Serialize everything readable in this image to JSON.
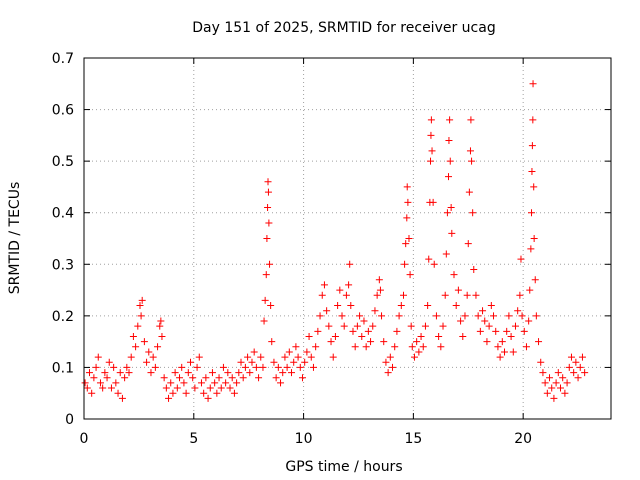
{
  "chart_data": {
    "type": "scatter",
    "title": "Day 151 of 2025, SRMTID for receiver ucag",
    "xlabel": "GPS time / hours",
    "ylabel": "SRMTID / TECUs",
    "xlim": [
      0,
      24
    ],
    "ylim": [
      0,
      0.7
    ],
    "xticks": [
      0,
      5,
      10,
      15,
      20
    ],
    "yticks": [
      0,
      0.1,
      0.2,
      0.3,
      0.4,
      0.5,
      0.6,
      0.7
    ],
    "xtick_labels": [
      "0",
      "5",
      "10",
      "15",
      "20"
    ],
    "ytick_labels": [
      "0",
      "0.1",
      "0.2",
      "0.3",
      "0.4",
      "0.5",
      "0.6",
      "0.7"
    ],
    "grid": true,
    "marker": "+",
    "marker_color": "#ff0000",
    "series": [
      {
        "name": "SRMTID",
        "points": [
          [
            0.05,
            0.07
          ],
          [
            0.15,
            0.06
          ],
          [
            0.25,
            0.09
          ],
          [
            0.35,
            0.05
          ],
          [
            0.45,
            0.08
          ],
          [
            0.55,
            0.1
          ],
          [
            0.65,
            0.12
          ],
          [
            0.75,
            0.07
          ],
          [
            0.85,
            0.06
          ],
          [
            0.95,
            0.09
          ],
          [
            1.05,
            0.08
          ],
          [
            1.15,
            0.11
          ],
          [
            1.25,
            0.06
          ],
          [
            1.35,
            0.1
          ],
          [
            1.45,
            0.07
          ],
          [
            1.55,
            0.05
          ],
          [
            1.65,
            0.09
          ],
          [
            1.75,
            0.04
          ],
          [
            1.85,
            0.08
          ],
          [
            1.95,
            0.1
          ],
          [
            2.05,
            0.09
          ],
          [
            2.15,
            0.12
          ],
          [
            2.25,
            0.16
          ],
          [
            2.35,
            0.14
          ],
          [
            2.45,
            0.18
          ],
          [
            2.55,
            0.22
          ],
          [
            2.6,
            0.2
          ],
          [
            2.65,
            0.23
          ],
          [
            2.75,
            0.15
          ],
          [
            2.85,
            0.11
          ],
          [
            2.95,
            0.13
          ],
          [
            3.05,
            0.09
          ],
          [
            3.15,
            0.12
          ],
          [
            3.25,
            0.1
          ],
          [
            3.35,
            0.14
          ],
          [
            3.45,
            0.18
          ],
          [
            3.5,
            0.19
          ],
          [
            3.55,
            0.16
          ],
          [
            3.65,
            0.08
          ],
          [
            3.75,
            0.06
          ],
          [
            3.85,
            0.04
          ],
          [
            3.95,
            0.07
          ],
          [
            4.05,
            0.05
          ],
          [
            4.15,
            0.09
          ],
          [
            4.25,
            0.06
          ],
          [
            4.35,
            0.08
          ],
          [
            4.45,
            0.1
          ],
          [
            4.55,
            0.07
          ],
          [
            4.65,
            0.05
          ],
          [
            4.75,
            0.09
          ],
          [
            4.85,
            0.11
          ],
          [
            4.95,
            0.08
          ],
          [
            5.05,
            0.06
          ],
          [
            5.15,
            0.1
          ],
          [
            5.25,
            0.12
          ],
          [
            5.35,
            0.07
          ],
          [
            5.45,
            0.05
          ],
          [
            5.55,
            0.08
          ],
          [
            5.65,
            0.04
          ],
          [
            5.75,
            0.06
          ],
          [
            5.85,
            0.09
          ],
          [
            5.95,
            0.07
          ],
          [
            6.05,
            0.05
          ],
          [
            6.15,
            0.08
          ],
          [
            6.25,
            0.06
          ],
          [
            6.35,
            0.1
          ],
          [
            6.45,
            0.07
          ],
          [
            6.55,
            0.09
          ],
          [
            6.65,
            0.06
          ],
          [
            6.75,
            0.08
          ],
          [
            6.85,
            0.05
          ],
          [
            6.95,
            0.07
          ],
          [
            7.05,
            0.09
          ],
          [
            7.15,
            0.11
          ],
          [
            7.25,
            0.08
          ],
          [
            7.35,
            0.1
          ],
          [
            7.45,
            0.12
          ],
          [
            7.55,
            0.09
          ],
          [
            7.65,
            0.11
          ],
          [
            7.75,
            0.13
          ],
          [
            7.85,
            0.1
          ],
          [
            7.95,
            0.08
          ],
          [
            8.05,
            0.12
          ],
          [
            8.15,
            0.1
          ],
          [
            8.2,
            0.19
          ],
          [
            8.25,
            0.23
          ],
          [
            8.3,
            0.28
          ],
          [
            8.33,
            0.35
          ],
          [
            8.36,
            0.41
          ],
          [
            8.38,
            0.46
          ],
          [
            8.4,
            0.44
          ],
          [
            8.42,
            0.38
          ],
          [
            8.45,
            0.3
          ],
          [
            8.5,
            0.22
          ],
          [
            8.55,
            0.15
          ],
          [
            8.65,
            0.11
          ],
          [
            8.75,
            0.08
          ],
          [
            8.85,
            0.1
          ],
          [
            8.95,
            0.07
          ],
          [
            9.05,
            0.09
          ],
          [
            9.15,
            0.12
          ],
          [
            9.25,
            0.1
          ],
          [
            9.35,
            0.13
          ],
          [
            9.45,
            0.09
          ],
          [
            9.55,
            0.11
          ],
          [
            9.65,
            0.14
          ],
          [
            9.75,
            0.12
          ],
          [
            9.85,
            0.1
          ],
          [
            9.95,
            0.08
          ],
          [
            10.05,
            0.11
          ],
          [
            10.15,
            0.13
          ],
          [
            10.25,
            0.16
          ],
          [
            10.35,
            0.12
          ],
          [
            10.45,
            0.1
          ],
          [
            10.55,
            0.14
          ],
          [
            10.65,
            0.17
          ],
          [
            10.75,
            0.2
          ],
          [
            10.85,
            0.24
          ],
          [
            10.95,
            0.26
          ],
          [
            11.05,
            0.21
          ],
          [
            11.15,
            0.18
          ],
          [
            11.25,
            0.15
          ],
          [
            11.35,
            0.12
          ],
          [
            11.45,
            0.16
          ],
          [
            11.55,
            0.22
          ],
          [
            11.65,
            0.25
          ],
          [
            11.75,
            0.2
          ],
          [
            11.85,
            0.18
          ],
          [
            11.95,
            0.24
          ],
          [
            12.05,
            0.26
          ],
          [
            12.1,
            0.3
          ],
          [
            12.15,
            0.22
          ],
          [
            12.25,
            0.17
          ],
          [
            12.35,
            0.14
          ],
          [
            12.45,
            0.18
          ],
          [
            12.55,
            0.2
          ],
          [
            12.65,
            0.16
          ],
          [
            12.75,
            0.19
          ],
          [
            12.85,
            0.14
          ],
          [
            12.95,
            0.17
          ],
          [
            13.05,
            0.15
          ],
          [
            13.15,
            0.18
          ],
          [
            13.25,
            0.21
          ],
          [
            13.35,
            0.24
          ],
          [
            13.45,
            0.27
          ],
          [
            13.5,
            0.25
          ],
          [
            13.55,
            0.2
          ],
          [
            13.65,
            0.15
          ],
          [
            13.75,
            0.11
          ],
          [
            13.85,
            0.09
          ],
          [
            13.95,
            0.12
          ],
          [
            14.05,
            0.1
          ],
          [
            14.15,
            0.14
          ],
          [
            14.25,
            0.17
          ],
          [
            14.35,
            0.2
          ],
          [
            14.45,
            0.22
          ],
          [
            14.55,
            0.24
          ],
          [
            14.6,
            0.3
          ],
          [
            14.65,
            0.34
          ],
          [
            14.7,
            0.39
          ],
          [
            14.72,
            0.45
          ],
          [
            14.75,
            0.42
          ],
          [
            14.8,
            0.35
          ],
          [
            14.85,
            0.28
          ],
          [
            14.9,
            0.18
          ],
          [
            14.95,
            0.14
          ],
          [
            15.05,
            0.12
          ],
          [
            15.15,
            0.15
          ],
          [
            15.25,
            0.13
          ],
          [
            15.35,
            0.16
          ],
          [
            15.45,
            0.14
          ],
          [
            15.55,
            0.18
          ],
          [
            15.65,
            0.22
          ],
          [
            15.7,
            0.31
          ],
          [
            15.75,
            0.42
          ],
          [
            15.78,
            0.5
          ],
          [
            15.8,
            0.55
          ],
          [
            15.82,
            0.58
          ],
          [
            15.85,
            0.52
          ],
          [
            15.9,
            0.42
          ],
          [
            15.95,
            0.3
          ],
          [
            16.05,
            0.2
          ],
          [
            16.15,
            0.16
          ],
          [
            16.25,
            0.14
          ],
          [
            16.35,
            0.18
          ],
          [
            16.45,
            0.24
          ],
          [
            16.5,
            0.32
          ],
          [
            16.55,
            0.4
          ],
          [
            16.6,
            0.47
          ],
          [
            16.62,
            0.54
          ],
          [
            16.65,
            0.58
          ],
          [
            16.68,
            0.5
          ],
          [
            16.72,
            0.41
          ],
          [
            16.75,
            0.36
          ],
          [
            16.85,
            0.28
          ],
          [
            16.95,
            0.22
          ],
          [
            17.05,
            0.25
          ],
          [
            17.15,
            0.19
          ],
          [
            17.25,
            0.16
          ],
          [
            17.35,
            0.2
          ],
          [
            17.45,
            0.24
          ],
          [
            17.5,
            0.34
          ],
          [
            17.55,
            0.44
          ],
          [
            17.6,
            0.52
          ],
          [
            17.62,
            0.58
          ],
          [
            17.65,
            0.5
          ],
          [
            17.7,
            0.4
          ],
          [
            17.75,
            0.29
          ],
          [
            17.85,
            0.24
          ],
          [
            17.95,
            0.2
          ],
          [
            18.05,
            0.17
          ],
          [
            18.15,
            0.21
          ],
          [
            18.25,
            0.19
          ],
          [
            18.35,
            0.15
          ],
          [
            18.45,
            0.18
          ],
          [
            18.55,
            0.22
          ],
          [
            18.65,
            0.2
          ],
          [
            18.75,
            0.17
          ],
          [
            18.85,
            0.14
          ],
          [
            18.95,
            0.12
          ],
          [
            19.05,
            0.15
          ],
          [
            19.15,
            0.13
          ],
          [
            19.25,
            0.17
          ],
          [
            19.35,
            0.2
          ],
          [
            19.45,
            0.16
          ],
          [
            19.55,
            0.13
          ],
          [
            19.65,
            0.18
          ],
          [
            19.75,
            0.21
          ],
          [
            19.85,
            0.24
          ],
          [
            19.9,
            0.31
          ],
          [
            19.95,
            0.2
          ],
          [
            20.05,
            0.17
          ],
          [
            20.15,
            0.14
          ],
          [
            20.25,
            0.19
          ],
          [
            20.3,
            0.25
          ],
          [
            20.35,
            0.33
          ],
          [
            20.38,
            0.4
          ],
          [
            20.4,
            0.48
          ],
          [
            20.42,
            0.53
          ],
          [
            20.44,
            0.58
          ],
          [
            20.45,
            0.65
          ],
          [
            20.48,
            0.45
          ],
          [
            20.5,
            0.35
          ],
          [
            20.55,
            0.27
          ],
          [
            20.6,
            0.2
          ],
          [
            20.7,
            0.15
          ],
          [
            20.8,
            0.11
          ],
          [
            20.9,
            0.09
          ],
          [
            21.0,
            0.07
          ],
          [
            21.1,
            0.05
          ],
          [
            21.2,
            0.08
          ],
          [
            21.3,
            0.06
          ],
          [
            21.4,
            0.04
          ],
          [
            21.5,
            0.07
          ],
          [
            21.6,
            0.09
          ],
          [
            21.7,
            0.06
          ],
          [
            21.8,
            0.08
          ],
          [
            21.9,
            0.05
          ],
          [
            22.0,
            0.07
          ],
          [
            22.1,
            0.1
          ],
          [
            22.2,
            0.12
          ],
          [
            22.3,
            0.09
          ],
          [
            22.4,
            0.11
          ],
          [
            22.5,
            0.08
          ],
          [
            22.6,
            0.1
          ],
          [
            22.7,
            0.12
          ],
          [
            22.8,
            0.09
          ]
        ]
      }
    ]
  }
}
